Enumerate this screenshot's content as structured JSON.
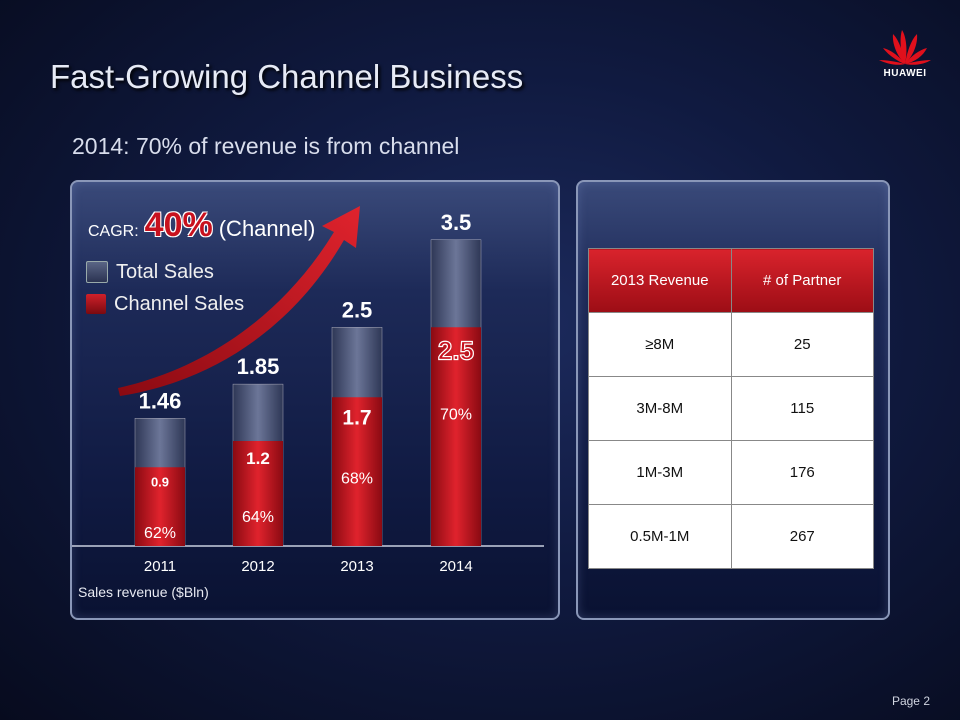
{
  "slide": {
    "title": "Fast-Growing Channel Business",
    "subtitle": "2014: 70% of revenue is from channel",
    "page_label": "Page 2",
    "brand": "HUAWEI"
  },
  "chart_data": {
    "type": "bar",
    "categories": [
      "2011",
      "2012",
      "2013",
      "2014"
    ],
    "series": [
      {
        "name": "Total Sales",
        "values": [
          1.46,
          1.85,
          2.5,
          3.5
        ],
        "labels": [
          "1.46",
          "1.85",
          "2.5",
          "3.5"
        ],
        "color": "#4a5576"
      },
      {
        "name": "Channel Sales",
        "values": [
          0.9,
          1.2,
          1.7,
          2.5
        ],
        "labels": [
          "0.9",
          "1.2",
          "1.7",
          "2.5"
        ],
        "color": "#c8111e"
      }
    ],
    "channel_share": [
      "62%",
      "64%",
      "68%",
      "70%"
    ],
    "cagr_label": "CAGR:",
    "cagr_value": "40%",
    "cagr_suffix": "(Channel)",
    "xlabel": "Sales revenue ($Bln)",
    "ylim": [
      0,
      3.5
    ],
    "legend": "top-left"
  },
  "table": {
    "headers": [
      "2013 Revenue",
      "# of Partner"
    ],
    "rows": [
      [
        "≥8M",
        "25"
      ],
      [
        "3M-8M",
        "115"
      ],
      [
        "1M-3M",
        "176"
      ],
      [
        "0.5M-1M",
        "267"
      ]
    ]
  }
}
